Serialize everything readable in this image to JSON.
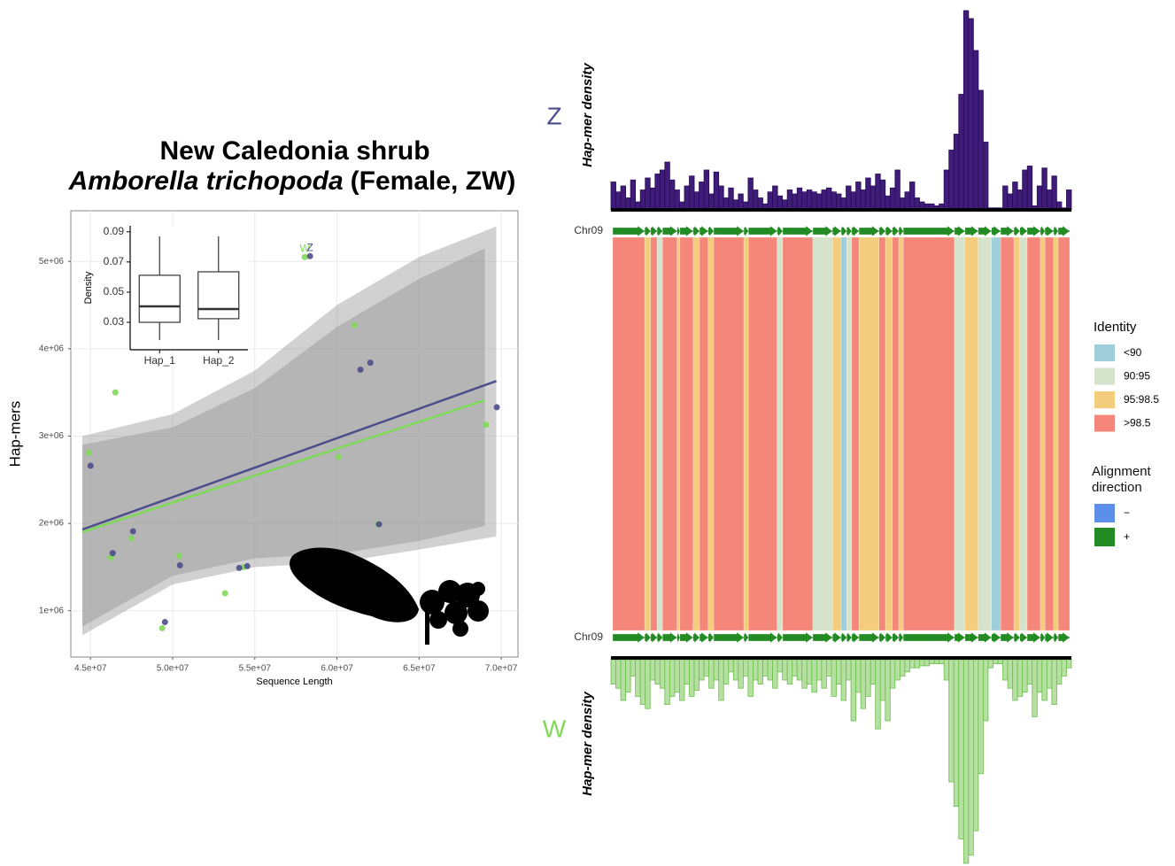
{
  "chart_data": [
    {
      "type": "scatter",
      "title": "New Caledonia shrub",
      "species": "Amborella trichopoda",
      "sex": "(Female, ZW)",
      "xlabel": "Sequence Length",
      "ylabel": "Hap-mers",
      "xlim": [
        43800000,
        71020000
      ],
      "ylim": [
        470000,
        5580000
      ],
      "xticks": [
        {
          "value": 45000000,
          "label": "4.5e+07"
        },
        {
          "value": 50000000,
          "label": "5.0e+07"
        },
        {
          "value": 55000000,
          "label": "5.5e+07"
        },
        {
          "value": 60000000,
          "label": "6.0e+07"
        },
        {
          "value": 65000000,
          "label": "6.5e+07"
        },
        {
          "value": 70000000,
          "label": "7.0e+07"
        }
      ],
      "yticks": [
        {
          "value": 1000000,
          "label": "1e+06"
        },
        {
          "value": 2000000,
          "label": "2e+06"
        },
        {
          "value": 3000000,
          "label": "3e+06"
        },
        {
          "value": 4000000,
          "label": "4e+06"
        },
        {
          "value": 5000000,
          "label": "5e+06"
        }
      ],
      "grid": true,
      "series": [
        {
          "name": "W",
          "color": "#7ed957",
          "x": [
            44890000,
            46510000,
            46240000,
            47480000,
            50390000,
            49360000,
            53190000,
            54320000,
            58040000,
            61060000,
            60090000,
            62510000,
            69080000
          ],
          "y": [
            2810000,
            3500000,
            1610000,
            1830000,
            1630000,
            800000,
            1200000,
            1500000,
            5050000,
            4270000,
            2760000,
            1990000,
            3130000
          ],
          "fit": {
            "x": [
              44500000,
              69000000
            ],
            "y": [
              1900000,
              3410000
            ]
          },
          "ci": {
            "x": [
              44500000,
              50000000,
              55000000,
              60000000,
              65000000,
              69000000
            ],
            "upper": [
              2900000,
              3100000,
              3550000,
              4250000,
              4800000,
              5150000
            ],
            "lower": [
              820000,
              1400000,
              1600000,
              1650000,
              1800000,
              1970000
            ]
          }
        },
        {
          "name": "Z",
          "color": "#4c4e8c",
          "x": [
            45000000,
            46350000,
            47590000,
            49530000,
            50440000,
            54050000,
            54540000,
            58360000,
            61430000,
            62030000,
            62560000,
            69730000
          ],
          "y": [
            2660000,
            1660000,
            1910000,
            870000,
            1520000,
            1490000,
            1510000,
            5060000,
            3760000,
            3840000,
            1990000,
            3330000
          ],
          "fit": {
            "x": [
              44500000,
              69700000
            ],
            "y": [
              1930000,
              3630000
            ]
          },
          "ci": {
            "x": [
              44500000,
              50000000,
              55000000,
              60000000,
              65000000,
              69700000
            ],
            "upper": [
              3000000,
              3250000,
              3750000,
              4500000,
              5050000,
              5400000
            ],
            "lower": [
              720000,
              1300000,
              1500000,
              1550000,
              1700000,
              1850000
            ]
          }
        }
      ]
    },
    {
      "type": "box",
      "ylabel": "Density",
      "categories": [
        "Hap_1",
        "Hap_2"
      ],
      "ylim": [
        0.0118,
        0.094
      ],
      "yticks": [
        0.03,
        0.05,
        0.07,
        0.09
      ],
      "stats": [
        {
          "min": 0.0182,
          "q1": 0.03,
          "median": 0.0406,
          "q3": 0.0612,
          "max": 0.087
        },
        {
          "min": 0.0182,
          "q1": 0.0324,
          "median": 0.0388,
          "q3": 0.0635,
          "max": 0.087
        }
      ]
    },
    {
      "type": "bar",
      "orientation": "up",
      "ylabel": "Hap-mer density",
      "tag": "Z",
      "tag_color": "#4b4a8f",
      "color": "#3f1c7a",
      "edge": "#260c55",
      "ylim": [
        0,
        100
      ],
      "values": [
        14,
        9,
        12,
        6,
        15,
        4,
        10,
        16,
        11,
        18,
        20,
        24,
        15,
        10,
        4,
        12,
        17,
        9,
        14,
        20,
        8,
        19,
        12,
        6,
        11,
        5,
        8,
        4,
        16,
        10,
        6,
        3,
        9,
        12,
        7,
        5,
        10,
        8,
        11,
        9,
        10,
        9,
        8,
        10,
        11,
        9,
        8,
        6,
        12,
        9,
        14,
        10,
        16,
        12,
        18,
        15,
        7,
        11,
        20,
        6,
        9,
        14,
        6,
        4,
        3,
        3,
        2,
        3,
        20,
        30,
        38,
        58,
        100,
        96,
        80,
        60,
        34,
        1,
        1,
        1,
        12,
        8,
        14,
        10,
        20,
        22,
        2,
        12,
        21,
        10,
        17,
        4,
        1,
        10
      ]
    },
    {
      "type": "synteny",
      "top_label": "Chr09",
      "bottom_label": "Chr09",
      "xlim": [
        0,
        100
      ],
      "identity_title": "Identity",
      "identity": [
        {
          "label": "<90",
          "color": "#9fcfdb"
        },
        {
          "label": "90:95",
          "color": "#d6e3cc"
        },
        {
          "label": "95:98.5",
          "color": "#f3cc7c"
        },
        {
          "label": ">98.5",
          "color": "#f4877a"
        }
      ],
      "direction_title": "Alignment direction",
      "direction": [
        {
          "label": "−",
          "color": "#5b8fe8"
        },
        {
          "label": "+",
          "color": "#238b23"
        }
      ],
      "segments": [
        [
          0,
          7.0,
          ">98.5",
          "+"
        ],
        [
          7.0,
          8.3,
          "95:98.5",
          "+"
        ],
        [
          8.3,
          9.7,
          ">98.5",
          "+"
        ],
        [
          9.7,
          10.9,
          "90:95",
          "+"
        ],
        [
          10.9,
          14.1,
          ">98.5",
          "+"
        ],
        [
          14.1,
          14.7,
          "95:98.5",
          "+"
        ],
        [
          14.7,
          17.6,
          ">98.5",
          "+"
        ],
        [
          17.6,
          19.0,
          "95:98.5",
          "+"
        ],
        [
          19.0,
          20.9,
          ">98.5",
          "+"
        ],
        [
          20.9,
          22.1,
          "95:98.5",
          "+"
        ],
        [
          22.1,
          28.7,
          ">98.5",
          "+"
        ],
        [
          28.7,
          29.7,
          "95:98.5",
          "+"
        ],
        [
          29.7,
          36.0,
          ">98.5",
          "+"
        ],
        [
          36.0,
          37.2,
          "90:95",
          "+"
        ],
        [
          37.2,
          43.8,
          ">98.5",
          "+"
        ],
        [
          43.8,
          48.1,
          "90:95",
          "+"
        ],
        [
          48.1,
          50.0,
          "95:98.5",
          "+"
        ],
        [
          50.0,
          51.2,
          "<90",
          "+"
        ],
        [
          51.2,
          52.3,
          "90:95",
          "+"
        ],
        [
          52.3,
          53.9,
          ">98.5",
          "+"
        ],
        [
          53.9,
          58.3,
          "95:98.5",
          "+"
        ],
        [
          58.3,
          59.7,
          ">98.5",
          "+"
        ],
        [
          59.7,
          61.2,
          "95:98.5",
          "+"
        ],
        [
          61.2,
          62.6,
          ">98.5",
          "+"
        ],
        [
          62.6,
          63.6,
          "95:98.5",
          "+"
        ],
        [
          63.6,
          74.8,
          ">98.5",
          "+"
        ],
        [
          74.8,
          77.1,
          "90:95",
          "+"
        ],
        [
          77.1,
          80.0,
          "95:98.5",
          "+"
        ],
        [
          80.0,
          82.9,
          "90:95",
          "+"
        ],
        [
          82.9,
          84.9,
          "<90",
          "+"
        ],
        [
          84.9,
          87.8,
          ">98.5",
          "+"
        ],
        [
          87.8,
          89.1,
          "95:98.5",
          "+"
        ],
        [
          89.1,
          90.7,
          "90:95",
          "+"
        ],
        [
          90.7,
          93.6,
          ">98.5",
          "+"
        ],
        [
          93.6,
          94.6,
          "95:98.5",
          "+"
        ],
        [
          94.6,
          96.5,
          ">98.5",
          "+"
        ],
        [
          96.5,
          97.5,
          "95:98.5",
          "+"
        ],
        [
          97.5,
          100,
          ">98.5",
          "+"
        ]
      ]
    },
    {
      "type": "bar",
      "orientation": "down",
      "ylabel": "Hap-mer density",
      "tag": "W",
      "tag_color": "#7ed957",
      "color": "#b6e0a2",
      "edge": "#6cbf4c",
      "ylim": [
        0,
        100
      ],
      "values": [
        12,
        14,
        20,
        16,
        8,
        18,
        22,
        24,
        10,
        12,
        14,
        22,
        18,
        16,
        20,
        12,
        18,
        15,
        10,
        8,
        14,
        10,
        20,
        12,
        6,
        10,
        14,
        8,
        18,
        10,
        12,
        8,
        10,
        14,
        6,
        10,
        12,
        8,
        10,
        14,
        12,
        16,
        10,
        14,
        8,
        18,
        12,
        20,
        10,
        30,
        16,
        24,
        18,
        12,
        34,
        20,
        30,
        14,
        10,
        8,
        6,
        4,
        4,
        3,
        3,
        2,
        2,
        2,
        10,
        60,
        72,
        88,
        100,
        96,
        84,
        56,
        30,
        4,
        2,
        2,
        10,
        14,
        20,
        18,
        16,
        12,
        28,
        16,
        20,
        14,
        22,
        12,
        8,
        4
      ]
    }
  ]
}
